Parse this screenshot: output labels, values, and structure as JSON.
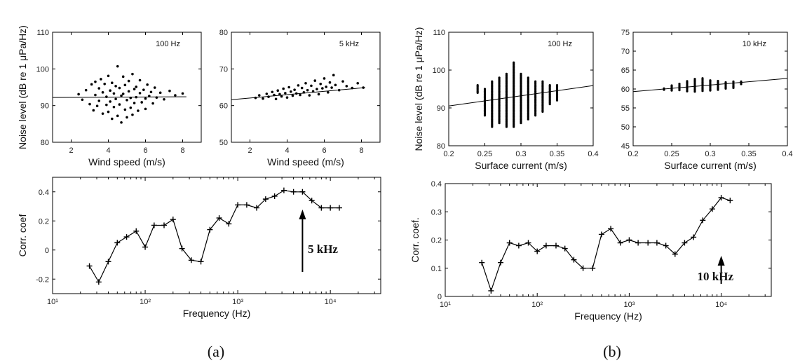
{
  "captions": [
    "(a)",
    "(b)"
  ],
  "chart_data": [
    {
      "id": "a_wind_100hz",
      "type": "scatter",
      "panel": "(a)",
      "annotation": "100 Hz",
      "xlabel": "Wind speed (m/s)",
      "ylabel": "Noise level (dB re 1 μPa/Hz)",
      "xlim": [
        1,
        9
      ],
      "ylim": [
        80,
        110
      ],
      "xticks": [
        "2",
        "4",
        "6",
        "8"
      ],
      "yticks": [
        "80",
        "90",
        "100",
        "110"
      ],
      "points": [
        [
          2.4,
          93.1
        ],
        [
          2.6,
          91.6
        ],
        [
          2.8,
          94.2
        ],
        [
          3.0,
          90.4
        ],
        [
          3.1,
          95.8
        ],
        [
          3.2,
          88.7
        ],
        [
          3.3,
          96.5
        ],
        [
          3.3,
          92.9
        ],
        [
          3.4,
          89.9
        ],
        [
          3.5,
          94.7
        ],
        [
          3.5,
          91.3
        ],
        [
          3.6,
          97.2
        ],
        [
          3.7,
          87.8
        ],
        [
          3.7,
          93.6
        ],
        [
          3.8,
          95.9
        ],
        [
          3.9,
          90.2
        ],
        [
          3.9,
          92.4
        ],
        [
          4.0,
          98.1
        ],
        [
          4.0,
          88.3
        ],
        [
          4.1,
          94.1
        ],
        [
          4.1,
          91.1
        ],
        [
          4.2,
          96.2
        ],
        [
          4.2,
          86.4
        ],
        [
          4.3,
          93.3
        ],
        [
          4.3,
          89.6
        ],
        [
          4.4,
          95.3
        ],
        [
          4.4,
          91.8
        ],
        [
          4.5,
          100.7
        ],
        [
          4.5,
          87.2
        ],
        [
          4.6,
          94.8
        ],
        [
          4.6,
          90.3
        ],
        [
          4.7,
          92.7
        ],
        [
          4.7,
          85.4
        ],
        [
          4.8,
          97.9
        ],
        [
          4.8,
          93.2
        ],
        [
          4.9,
          88.9
        ],
        [
          4.9,
          95.6
        ],
        [
          5.0,
          91.5
        ],
        [
          5.0,
          86.8
        ],
        [
          5.1,
          96.7
        ],
        [
          5.1,
          93.9
        ],
        [
          5.2,
          89.4
        ],
        [
          5.2,
          92.1
        ],
        [
          5.3,
          98.6
        ],
        [
          5.3,
          87.5
        ],
        [
          5.4,
          94.5
        ],
        [
          5.4,
          90.7
        ],
        [
          5.5,
          95.1
        ],
        [
          5.5,
          92.3
        ],
        [
          5.6,
          88.6
        ],
        [
          5.7,
          96.9
        ],
        [
          5.7,
          93.4
        ],
        [
          5.8,
          90.9
        ],
        [
          5.9,
          94.3
        ],
        [
          6.0,
          91.9
        ],
        [
          6.0,
          89.1
        ],
        [
          6.1,
          95.7
        ],
        [
          6.2,
          92.6
        ],
        [
          6.3,
          93.7
        ],
        [
          6.4,
          90.6
        ],
        [
          6.5,
          94.9
        ],
        [
          6.6,
          92.2
        ],
        [
          6.8,
          93.5
        ],
        [
          7.0,
          91.7
        ],
        [
          7.3,
          94.0
        ],
        [
          7.6,
          92.8
        ],
        [
          8.0,
          93.3
        ]
      ],
      "fit_line": [
        [
          1,
          92.2
        ],
        [
          8.2,
          92.4
        ]
      ]
    },
    {
      "id": "a_wind_5khz",
      "type": "scatter",
      "panel": "(a)",
      "annotation": "5 kHz",
      "xlabel": "Wind speed (m/s)",
      "xlim": [
        1,
        9
      ],
      "ylim": [
        50,
        80
      ],
      "xticks": [
        "2",
        "4",
        "6",
        "8"
      ],
      "yticks": [
        "50",
        "60",
        "70",
        "80"
      ],
      "points": [
        [
          2.3,
          62.1
        ],
        [
          2.5,
          62.8
        ],
        [
          2.7,
          61.9
        ],
        [
          2.9,
          63.2
        ],
        [
          3.0,
          62.4
        ],
        [
          3.2,
          63.7
        ],
        [
          3.3,
          62.9
        ],
        [
          3.4,
          61.8
        ],
        [
          3.5,
          64.1
        ],
        [
          3.6,
          63.1
        ],
        [
          3.7,
          62.5
        ],
        [
          3.8,
          64.6
        ],
        [
          3.9,
          63.4
        ],
        [
          4.0,
          62.2
        ],
        [
          4.1,
          65.0
        ],
        [
          4.2,
          63.8
        ],
        [
          4.3,
          62.7
        ],
        [
          4.4,
          64.3
        ],
        [
          4.5,
          63.3
        ],
        [
          4.6,
          65.5
        ],
        [
          4.7,
          62.9
        ],
        [
          4.8,
          64.8
        ],
        [
          4.9,
          63.6
        ],
        [
          5.0,
          66.1
        ],
        [
          5.1,
          64.2
        ],
        [
          5.2,
          62.8
        ],
        [
          5.3,
          65.4
        ],
        [
          5.4,
          63.9
        ],
        [
          5.5,
          66.8
        ],
        [
          5.6,
          64.5
        ],
        [
          5.7,
          63.1
        ],
        [
          5.8,
          65.9
        ],
        [
          5.9,
          64.7
        ],
        [
          6.0,
          67.4
        ],
        [
          6.1,
          65.1
        ],
        [
          6.2,
          63.6
        ],
        [
          6.3,
          66.3
        ],
        [
          6.4,
          64.9
        ],
        [
          6.5,
          68.3
        ],
        [
          6.6,
          65.6
        ],
        [
          6.8,
          64.2
        ],
        [
          7.0,
          66.6
        ],
        [
          7.2,
          65.3
        ],
        [
          7.5,
          64.8
        ],
        [
          7.8,
          66.1
        ],
        [
          8.1,
          64.9
        ]
      ],
      "fit_line": [
        [
          1,
          61.6
        ],
        [
          8.2,
          64.9
        ]
      ]
    },
    {
      "id": "a_corr_freq",
      "type": "line",
      "panel": "(a)",
      "xlabel": "Frequency (Hz)",
      "ylabel": "Corr. coef",
      "xscale": "log",
      "xlim": [
        10,
        35000
      ],
      "ylim": [
        -0.3,
        0.5
      ],
      "yticks": [
        "-0.2",
        "0",
        "0.2",
        "0.4"
      ],
      "xticks": [
        "10¹",
        "10²",
        "10³",
        "10⁴"
      ],
      "x": [
        25,
        31.5,
        40,
        50,
        63,
        80,
        100,
        125,
        160,
        200,
        250,
        315,
        400,
        500,
        630,
        800,
        1000,
        1250,
        1600,
        2000,
        2500,
        3150,
        4000,
        5000,
        6300,
        8000,
        10000,
        12500
      ],
      "values": [
        -0.11,
        -0.22,
        -0.08,
        0.05,
        0.09,
        0.13,
        0.02,
        0.17,
        0.17,
        0.21,
        0.01,
        -0.07,
        -0.08,
        0.14,
        0.22,
        0.18,
        0.31,
        0.31,
        0.29,
        0.35,
        0.37,
        0.41,
        0.4,
        0.4,
        0.34,
        0.29,
        0.29,
        0.29
      ],
      "annotation": "5 kHz",
      "arrow_at": 5000
    },
    {
      "id": "b_current_100hz",
      "type": "scatter",
      "panel": "(b)",
      "annotation": "100 Hz",
      "xlabel": "Surface current (m/s)",
      "ylabel": "Noise level (dB re 1 μPa/Hz)",
      "xlim": [
        0.2,
        0.4
      ],
      "ylim": [
        80,
        110
      ],
      "xticks": [
        "0.2",
        "0.25",
        "0.3",
        "0.35",
        "0.4"
      ],
      "yticks": [
        "80",
        "90",
        "100",
        "110"
      ],
      "columns": [
        [
          0.24,
          94,
          96
        ],
        [
          0.25,
          88,
          95
        ],
        [
          0.26,
          85,
          97
        ],
        [
          0.27,
          86,
          98
        ],
        [
          0.28,
          85,
          99
        ],
        [
          0.29,
          85,
          102
        ],
        [
          0.3,
          86,
          99
        ],
        [
          0.31,
          87,
          98
        ],
        [
          0.32,
          88,
          97
        ],
        [
          0.33,
          89,
          97
        ],
        [
          0.34,
          91,
          96
        ],
        [
          0.35,
          92,
          96
        ]
      ],
      "fit_line": [
        [
          0.2,
          90.5
        ],
        [
          0.4,
          95.9
        ]
      ]
    },
    {
      "id": "b_current_10khz",
      "type": "scatter",
      "panel": "(b)",
      "annotation": "10 kHz",
      "xlabel": "Surface current (m/s)",
      "xlim": [
        0.2,
        0.4
      ],
      "ylim": [
        45,
        75
      ],
      "xticks": [
        "0.2",
        "0.25",
        "0.3",
        "0.35",
        "0.4"
      ],
      "yticks": [
        "45",
        "50",
        "55",
        "60",
        "65",
        "70",
        "75"
      ],
      "columns": [
        [
          0.24,
          59.8,
          60.3
        ],
        [
          0.25,
          59.6,
          61.0
        ],
        [
          0.26,
          59.7,
          61.6
        ],
        [
          0.27,
          59.4,
          62.4
        ],
        [
          0.28,
          59.3,
          62.8
        ],
        [
          0.29,
          59.5,
          62.9
        ],
        [
          0.3,
          59.6,
          62.6
        ],
        [
          0.31,
          59.8,
          62.4
        ],
        [
          0.32,
          60.1,
          62.1
        ],
        [
          0.33,
          60.3,
          62.0
        ],
        [
          0.34,
          61.3,
          62.0
        ]
      ],
      "fit_line": [
        [
          0.2,
          59.3
        ],
        [
          0.4,
          62.8
        ]
      ]
    },
    {
      "id": "b_corr_freq",
      "type": "line",
      "panel": "(b)",
      "xlabel": "Frequency (Hz)",
      "ylabel": "Corr. coef.",
      "xscale": "log",
      "xlim": [
        10,
        35000
      ],
      "ylim": [
        0,
        0.4
      ],
      "yticks": [
        "0",
        "0.1",
        "0.2",
        "0.3",
        "0.4"
      ],
      "xticks": [
        "10¹",
        "10²",
        "10³",
        "10⁴"
      ],
      "x": [
        25,
        31.5,
        40,
        50,
        63,
        80,
        100,
        125,
        160,
        200,
        250,
        315,
        400,
        500,
        630,
        800,
        1000,
        1250,
        1600,
        2000,
        2500,
        3150,
        4000,
        5000,
        6300,
        8000,
        10000,
        12500
      ],
      "values": [
        0.12,
        0.02,
        0.12,
        0.19,
        0.18,
        0.19,
        0.16,
        0.18,
        0.18,
        0.17,
        0.13,
        0.1,
        0.1,
        0.22,
        0.24,
        0.19,
        0.2,
        0.19,
        0.19,
        0.19,
        0.18,
        0.15,
        0.19,
        0.21,
        0.27,
        0.31,
        0.35,
        0.34
      ],
      "annotation": "10 kHz",
      "arrow_at": 10000
    }
  ]
}
